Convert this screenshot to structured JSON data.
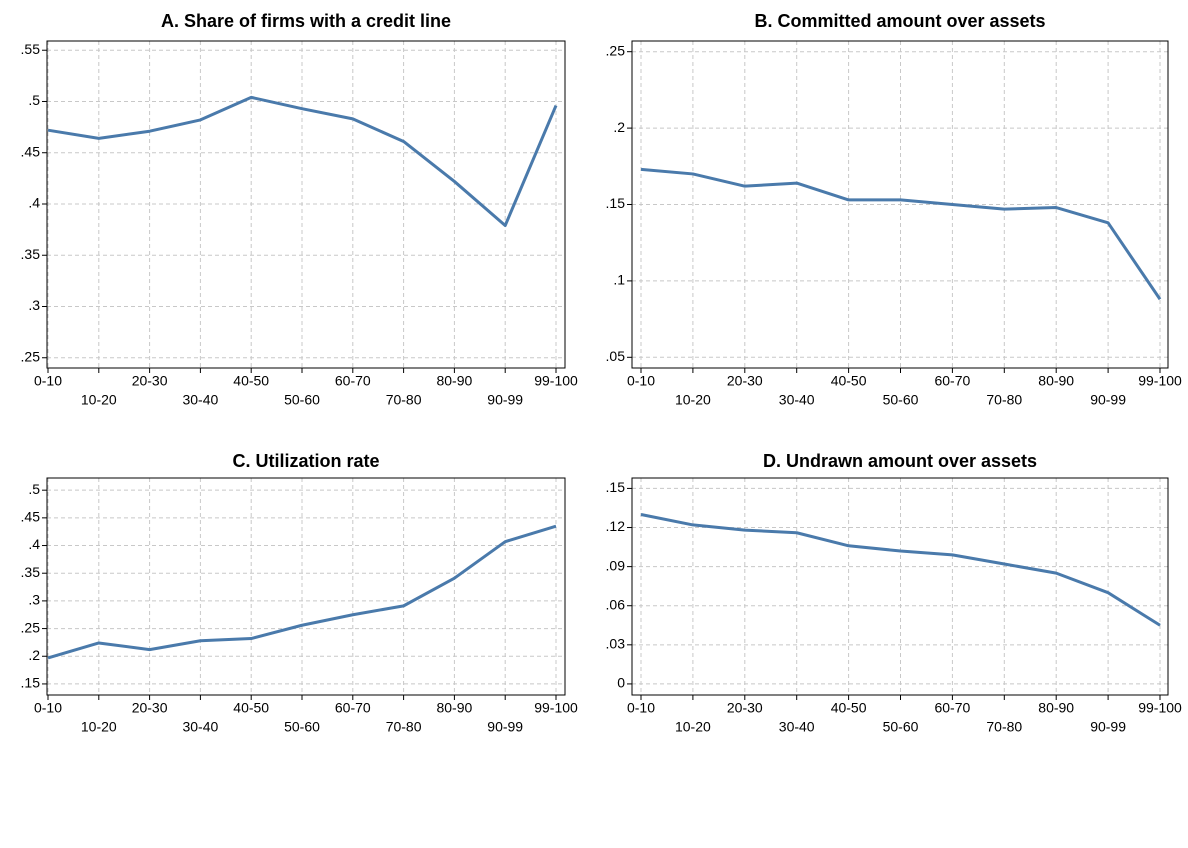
{
  "chart_data": [
    {
      "type": "line",
      "title": "A. Share of firms with a credit line",
      "categories": [
        "0-10",
        "10-20",
        "20-30",
        "30-40",
        "40-50",
        "50-60",
        "60-70",
        "70-80",
        "80-90",
        "90-99",
        "99-100"
      ],
      "values": [
        0.472,
        0.464,
        0.471,
        0.482,
        0.504,
        0.493,
        0.483,
        0.461,
        0.422,
        0.379,
        0.496
      ],
      "color": "#4a7aab",
      "grid": true,
      "ylim": [
        0.24,
        0.559
      ],
      "yticks": [
        {
          "value": 0.25,
          "label": ".25"
        },
        {
          "value": 0.3,
          "label": ".3"
        },
        {
          "value": 0.35,
          "label": ".35"
        },
        {
          "value": 0.4,
          "label": ".4"
        },
        {
          "value": 0.45,
          "label": ".45"
        },
        {
          "value": 0.5,
          "label": ".5"
        },
        {
          "value": 0.55,
          "label": ".55"
        }
      ]
    },
    {
      "type": "line",
      "title": "B. Committed amount over assets",
      "categories": [
        "0-10",
        "10-20",
        "20-30",
        "30-40",
        "40-50",
        "50-60",
        "60-70",
        "70-80",
        "80-90",
        "90-99",
        "99-100"
      ],
      "values": [
        0.173,
        0.17,
        0.162,
        0.164,
        0.153,
        0.153,
        0.15,
        0.147,
        0.148,
        0.138,
        0.088
      ],
      "color": "#4a7aab",
      "grid": true,
      "ylim": [
        0.043,
        0.257
      ],
      "yticks": [
        {
          "value": 0.05,
          "label": ".05"
        },
        {
          "value": 0.1,
          "label": ".1"
        },
        {
          "value": 0.15,
          "label": ".15"
        },
        {
          "value": 0.2,
          "label": ".2"
        },
        {
          "value": 0.25,
          "label": ".25"
        }
      ]
    },
    {
      "type": "line",
      "title": "C. Utilization rate",
      "categories": [
        "0-10",
        "10-20",
        "20-30",
        "30-40",
        "40-50",
        "50-60",
        "60-70",
        "70-80",
        "80-90",
        "90-99",
        "99-100"
      ],
      "values": [
        0.197,
        0.224,
        0.212,
        0.228,
        0.232,
        0.256,
        0.275,
        0.291,
        0.341,
        0.407,
        0.435
      ],
      "color": "#4a7aab",
      "grid": true,
      "ylim": [
        0.13,
        0.522
      ],
      "yticks": [
        {
          "value": 0.15,
          "label": ".15"
        },
        {
          "value": 0.2,
          "label": ".2"
        },
        {
          "value": 0.25,
          "label": ".25"
        },
        {
          "value": 0.3,
          "label": ".3"
        },
        {
          "value": 0.35,
          "label": ".35"
        },
        {
          "value": 0.4,
          "label": ".4"
        },
        {
          "value": 0.45,
          "label": ".45"
        },
        {
          "value": 0.5,
          "label": ".5"
        }
      ]
    },
    {
      "type": "line",
      "title": "D. Undrawn amount over assets",
      "categories": [
        "0-10",
        "10-20",
        "20-30",
        "30-40",
        "40-50",
        "50-60",
        "60-70",
        "70-80",
        "80-90",
        "90-99",
        "99-100"
      ],
      "values": [
        0.13,
        0.122,
        0.118,
        0.116,
        0.106,
        0.102,
        0.099,
        0.092,
        0.085,
        0.07,
        0.045
      ],
      "color": "#4a7aab",
      "grid": true,
      "ylim": [
        -0.0085,
        0.158
      ],
      "yticks": [
        0,
        {
          "value": 0.03,
          "label": ".03"
        },
        {
          "value": 0.06,
          "label": ".06"
        },
        {
          "value": 0.09,
          "label": ".09"
        },
        {
          "value": 0.12,
          "label": ".12"
        },
        {
          "value": 0.15,
          "label": ".15"
        }
      ]
    }
  ]
}
